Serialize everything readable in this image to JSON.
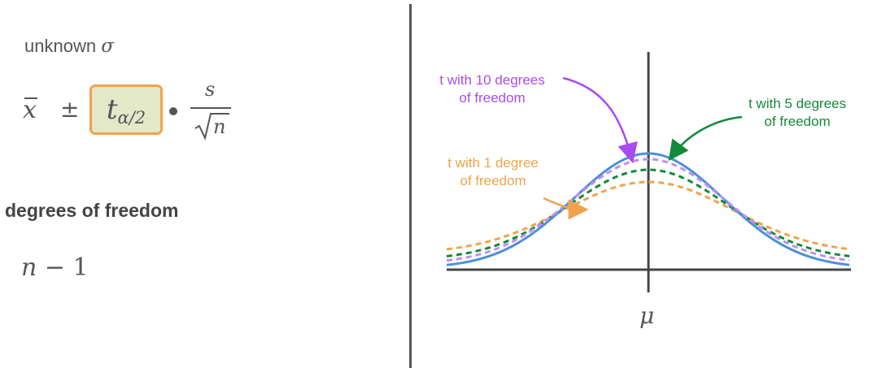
{
  "left_panel": {
    "unknown_label": "unknown",
    "sigma_symbol": "σ",
    "formula": {
      "xbar": "x",
      "plus_minus": "±",
      "t_symbol": "t",
      "t_subscript": "α/2",
      "numerator": "s",
      "denominator": "n"
    },
    "degrees_heading": "degrees of freedom",
    "degrees_n": "n",
    "degrees_rest": " − 1"
  },
  "diagram": {
    "mu_label": "μ",
    "labels": {
      "t10": "t with 10 degrees\nof freedom",
      "t5": "t with 5 degrees\nof freedom",
      "t1": "t with 1 degree\nof freedom"
    },
    "colors": {
      "normal": "#4a90d9",
      "t10": "#c48cf0",
      "t5": "#138a3a",
      "t1": "#f0a34b",
      "axis": "#444444",
      "t10_label": "#a94bef"
    }
  }
}
